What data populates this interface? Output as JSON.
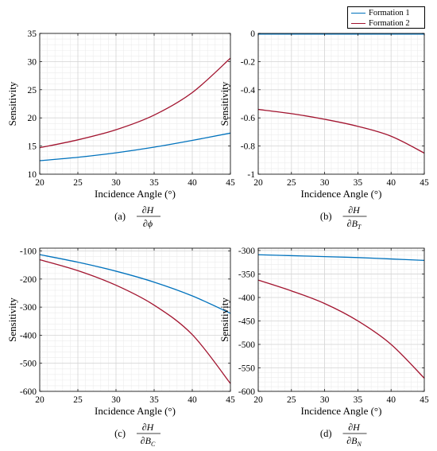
{
  "legend": {
    "items": [
      {
        "name": "Formation 1",
        "color": "#0072BD"
      },
      {
        "name": "Formation 2",
        "color": "#A2142F"
      }
    ]
  },
  "chart_data": [
    {
      "type": "line",
      "id": "a",
      "caption_prefix": "(a)",
      "caption_formula": {
        "num": "∂H",
        "den": "∂ϕ"
      },
      "xlabel": "Incidence Angle (°)",
      "ylabel": "Sensitivity",
      "xlim": [
        20,
        45
      ],
      "ylim": [
        10,
        35
      ],
      "xticks": [
        20,
        25,
        30,
        35,
        40,
        45
      ],
      "yticks": [
        10,
        15,
        20,
        25,
        30,
        35
      ],
      "grid": true,
      "series": [
        {
          "name": "Formation 1",
          "color": "#0072BD",
          "x": [
            20,
            25,
            30,
            35,
            40,
            45
          ],
          "y": [
            12.4,
            13.0,
            13.8,
            14.8,
            16.0,
            17.3
          ]
        },
        {
          "name": "Formation 2",
          "color": "#A2142F",
          "x": [
            20,
            25,
            30,
            35,
            40,
            45
          ],
          "y": [
            14.7,
            16.1,
            17.9,
            20.5,
            24.5,
            30.6
          ]
        }
      ]
    },
    {
      "type": "line",
      "id": "b",
      "caption_prefix": "(b)",
      "caption_formula": {
        "num": "∂H",
        "den": "∂B",
        "den_sub": "T"
      },
      "xlabel": "Incidence Angle (°)",
      "ylabel": "Sensitivity",
      "xlim": [
        20,
        45
      ],
      "ylim": [
        -1,
        0
      ],
      "xticks": [
        20,
        25,
        30,
        35,
        40,
        45
      ],
      "yticks": [
        -1,
        -0.8,
        -0.6,
        -0.4,
        -0.2,
        0
      ],
      "grid": true,
      "series": [
        {
          "name": "Formation 1",
          "color": "#0072BD",
          "x": [
            20,
            25,
            30,
            35,
            40,
            45
          ],
          "y": [
            -0.005,
            -0.005,
            -0.005,
            -0.005,
            -0.005,
            -0.005
          ]
        },
        {
          "name": "Formation 2",
          "color": "#A2142F",
          "x": [
            20,
            25,
            30,
            35,
            40,
            45
          ],
          "y": [
            -0.54,
            -0.57,
            -0.61,
            -0.66,
            -0.73,
            -0.85
          ]
        }
      ]
    },
    {
      "type": "line",
      "id": "c",
      "caption_prefix": "(c)",
      "caption_formula": {
        "num": "∂H",
        "den": "∂B",
        "den_sub": "C"
      },
      "xlabel": "Incidence Angle (°)",
      "ylabel": "Sensitivity",
      "xlim": [
        20,
        45
      ],
      "ylim": [
        -600,
        -90
      ],
      "xticks": [
        20,
        25,
        30,
        35,
        40,
        45
      ],
      "yticks": [
        -600,
        -500,
        -400,
        -300,
        -200,
        -100
      ],
      "grid": true,
      "series": [
        {
          "name": "Formation 1",
          "color": "#0072BD",
          "x": [
            20,
            25,
            30,
            35,
            40,
            45
          ],
          "y": [
            -113,
            -140,
            -172,
            -211,
            -260,
            -322
          ]
        },
        {
          "name": "Formation 2",
          "color": "#A2142F",
          "x": [
            20,
            25,
            30,
            35,
            40,
            45
          ],
          "y": [
            -131,
            -170,
            -222,
            -293,
            -398,
            -572
          ]
        }
      ]
    },
    {
      "type": "line",
      "id": "d",
      "caption_prefix": "(d)",
      "caption_formula": {
        "num": "∂H",
        "den": "∂B",
        "den_sub": "N"
      },
      "xlabel": "Incidence Angle (°)",
      "ylabel": "Sensitivity",
      "xlim": [
        20,
        45
      ],
      "ylim": [
        -600,
        -295
      ],
      "xticks": [
        20,
        25,
        30,
        35,
        40,
        45
      ],
      "yticks": [
        -600,
        -550,
        -500,
        -450,
        -400,
        -350,
        -300
      ],
      "grid": true,
      "series": [
        {
          "name": "Formation 1",
          "color": "#0072BD",
          "x": [
            20,
            25,
            30,
            35,
            40,
            45
          ],
          "y": [
            -309,
            -311,
            -313,
            -315,
            -318,
            -321
          ]
        },
        {
          "name": "Formation 2",
          "color": "#A2142F",
          "x": [
            20,
            25,
            30,
            35,
            40,
            45
          ],
          "y": [
            -363,
            -386,
            -413,
            -450,
            -500,
            -572
          ]
        }
      ]
    }
  ]
}
